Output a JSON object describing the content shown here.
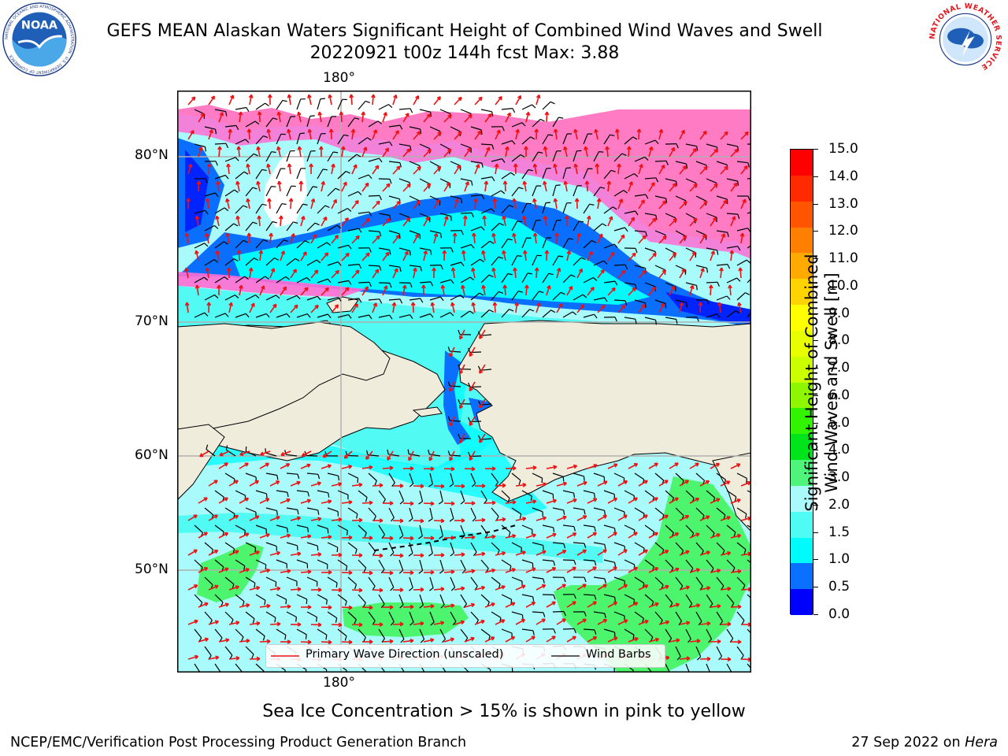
{
  "header": {
    "title_line1": "GEFS MEAN Alaskan Waters Significant Height of Combined Wind Waves and Swell",
    "title_line2": "20220921 t00z 144h fcst   Max: 3.88"
  },
  "logos": {
    "noaa_text": "NOAA",
    "noaa_ring_text": "NATIONAL OCEANIC AND ATMOSPHERIC ADMINISTRATION · U.S. DEPARTMENT OF COMMERCE",
    "nws_ring_text": "NATIONAL WEATHER SERVICE"
  },
  "map": {
    "lon_label_top": "180°",
    "lon_label_bottom": "180°",
    "lat_labels": [
      "80°N",
      "70°N",
      "60°N",
      "50°N"
    ],
    "colors": {
      "land": "#efecdc",
      "ocean_light": "#a8fbfa",
      "ocean_cyan": "#00fbff",
      "ocean_mid": "#51fbf3",
      "ocean_blue": "#0a6ffe",
      "ocean_deep": "#0024ff",
      "swell_green": "#4df46d",
      "wave_arrow": "#ee1111",
      "wind_barb": "#000000"
    }
  },
  "colorbar": {
    "title_line1": "Significant Height of Combined",
    "title_line2": "Wind Waves and Swell [m]",
    "ticks": [
      "15.0",
      "14.0",
      "13.0",
      "12.0",
      "11.0",
      "10.0",
      "9.0",
      "8.0",
      "7.0",
      "6.0",
      "5.0",
      "4.0",
      "3.0",
      "2.0",
      "1.5",
      "1.0",
      "0.5",
      "0.0"
    ],
    "segment_colors_top_to_bottom": [
      "#ff0000",
      "#ff2a00",
      "#ff5500",
      "#ff8000",
      "#ffaa00",
      "#ffd400",
      "#ffff00",
      "#e8ff00",
      "#cbff00",
      "#8ef700",
      "#33f400",
      "#00e41b",
      "#4ef57a",
      "#aaf9fb",
      "#4efcf4",
      "#00fbfd",
      "#0a70ff",
      "#0000ff"
    ]
  },
  "legend": {
    "wave_label": "Primary Wave Direction (unscaled)",
    "wind_label": "Wind Barbs"
  },
  "footer": {
    "note": "Sea Ice Concentration > 15% is shown in pink to yellow",
    "left": "NCEP/EMC/Verification Post Processing Product Generation Branch",
    "right_prefix": "27 Sep 2022 on ",
    "right_machine": "Hera"
  }
}
